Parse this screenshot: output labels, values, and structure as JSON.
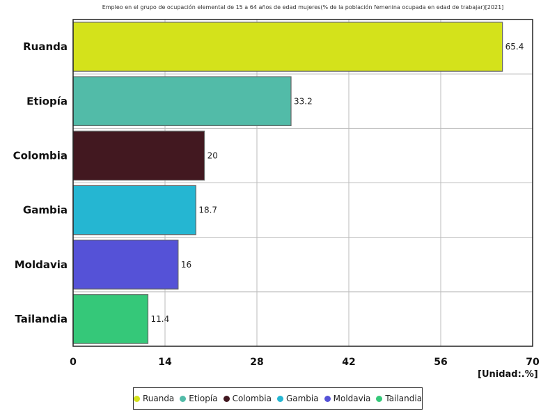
{
  "chart_data": {
    "type": "bar",
    "orientation": "horizontal",
    "title": "Empleo en el grupo de ocupación elemental de 15 a 64 años de edad mujeres(% de la población femenina ocupada en edad de trabajar)[2021]",
    "unit_label": "[Unidad:.%]",
    "categories": [
      "Ruanda",
      "Etiopía",
      "Colombia",
      "Gambia",
      "Moldavia",
      "Tailandia"
    ],
    "values": [
      65.4,
      33.2,
      20,
      18.7,
      16,
      11.4
    ],
    "value_labels": [
      "65.4",
      "33.2",
      "20",
      "18.7",
      "16",
      "11.4"
    ],
    "colors": [
      "#d4e21b",
      "#52bba8",
      "#421820",
      "#25b6d2",
      "#5552d7",
      "#35c879"
    ],
    "xlim": [
      0,
      70
    ],
    "xticks": [
      0,
      14,
      28,
      42,
      56,
      70
    ],
    "grid": true,
    "legend_position": "bottom"
  }
}
